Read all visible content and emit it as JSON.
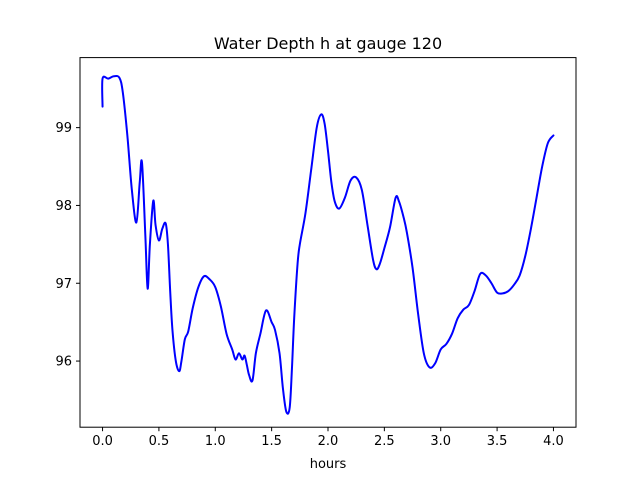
{
  "chart_data": {
    "type": "line",
    "title": "Water Depth h at gauge 120",
    "xlabel": "hours",
    "ylabel": "",
    "xlim": [
      -0.2,
      4.2
    ],
    "ylim": [
      95.15,
      99.9
    ],
    "xticks": [
      0.0,
      0.5,
      1.0,
      1.5,
      2.0,
      2.5,
      3.0,
      3.5,
      4.0
    ],
    "xtick_labels": [
      "0.0",
      "0.5",
      "1.0",
      "1.5",
      "2.0",
      "2.5",
      "3.0",
      "3.5",
      "4.0"
    ],
    "yticks": [
      96,
      97,
      98,
      99
    ],
    "ytick_labels": [
      "96",
      "97",
      "98",
      "99"
    ],
    "grid": false,
    "series": [
      {
        "color": "#0000ff",
        "x": [
          0.0,
          0.0,
          0.05,
          0.1,
          0.15,
          0.18,
          0.22,
          0.26,
          0.3,
          0.33,
          0.35,
          0.38,
          0.4,
          0.42,
          0.45,
          0.47,
          0.5,
          0.53,
          0.56,
          0.58,
          0.6,
          0.62,
          0.65,
          0.68,
          0.7,
          0.73,
          0.76,
          0.8,
          0.85,
          0.9,
          0.95,
          1.0,
          1.05,
          1.1,
          1.15,
          1.18,
          1.21,
          1.24,
          1.26,
          1.28,
          1.3,
          1.33,
          1.36,
          1.4,
          1.45,
          1.5,
          1.53,
          1.57,
          1.6,
          1.63,
          1.66,
          1.68,
          1.7,
          1.73,
          1.75,
          1.8,
          1.85,
          1.9,
          1.94,
          1.97,
          2.0,
          2.03,
          2.06,
          2.1,
          2.15,
          2.2,
          2.25,
          2.3,
          2.35,
          2.4,
          2.43,
          2.46,
          2.5,
          2.55,
          2.6,
          2.63,
          2.67,
          2.7,
          2.75,
          2.8,
          2.85,
          2.9,
          2.95,
          3.0,
          3.05,
          3.1,
          3.15,
          3.2,
          3.25,
          3.3,
          3.35,
          3.4,
          3.45,
          3.5,
          3.55,
          3.6,
          3.65,
          3.7,
          3.75,
          3.8,
          3.85,
          3.9,
          3.95,
          4.0
        ],
        "y": [
          99.27,
          99.63,
          99.63,
          99.66,
          99.64,
          99.45,
          98.9,
          98.2,
          97.78,
          98.3,
          98.55,
          97.6,
          96.93,
          97.5,
          98.06,
          97.75,
          97.55,
          97.7,
          97.77,
          97.5,
          96.9,
          96.4,
          96.0,
          95.87,
          96.0,
          96.28,
          96.38,
          96.68,
          96.95,
          97.09,
          97.05,
          96.95,
          96.7,
          96.35,
          96.15,
          96.02,
          96.1,
          96.02,
          96.07,
          95.95,
          95.82,
          95.75,
          96.1,
          96.35,
          96.65,
          96.5,
          96.4,
          96.1,
          95.65,
          95.35,
          95.4,
          95.9,
          96.55,
          97.25,
          97.5,
          97.9,
          98.45,
          99.0,
          99.17,
          99.05,
          98.7,
          98.3,
          98.05,
          97.96,
          98.1,
          98.32,
          98.36,
          98.2,
          97.75,
          97.3,
          97.18,
          97.25,
          97.45,
          97.72,
          98.1,
          98.05,
          97.85,
          97.65,
          97.2,
          96.6,
          96.1,
          95.92,
          95.97,
          96.15,
          96.22,
          96.35,
          96.55,
          96.66,
          96.72,
          96.9,
          97.12,
          97.1,
          97.0,
          96.88,
          96.87,
          96.9,
          96.98,
          97.1,
          97.35,
          97.7,
          98.1,
          98.5,
          98.8,
          98.9
        ]
      }
    ]
  }
}
